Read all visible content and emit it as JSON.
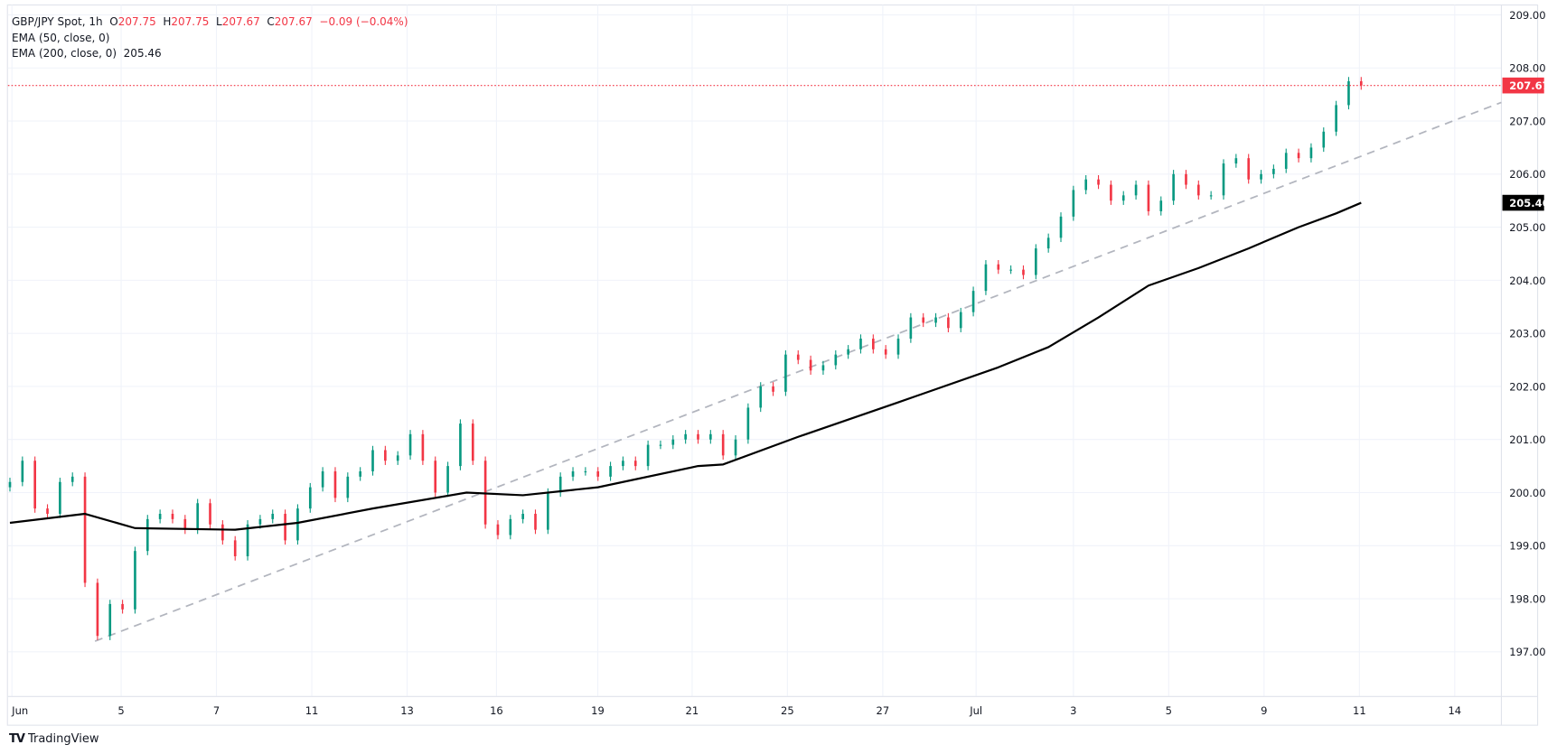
{
  "legend": {
    "symbol": "GBP/JPY Spot, 1h",
    "o_label": "O",
    "open": "207.75",
    "h_label": "H",
    "high": "207.75",
    "l_label": "L",
    "low": "207.67",
    "c_label": "C",
    "close": "207.67",
    "change": "−0.09 (−0.04%)",
    "ema50": "EMA (50, close, 0)",
    "ema200": "EMA (200, close, 0)",
    "ema200_value": "205.46"
  },
  "branding": {
    "logo_text": "TradingView"
  },
  "colors": {
    "up": "#089981",
    "down": "#f23645",
    "ema": "#000000",
    "trendline": "#b2b5be",
    "price_label": "#f23645",
    "grid": "#f0f3fa"
  },
  "chart_data": {
    "type": "candlestick",
    "title": "GBP/JPY Spot, 1h",
    "ylim": [
      196.2,
      209.25
    ],
    "grid": true,
    "price_ticks": [
      "209.00",
      "208.00",
      "207.00",
      "206.00",
      "205.00",
      "204.00",
      "203.00",
      "202.00",
      "201.00",
      "200.00",
      "199.00",
      "198.00",
      "197.00"
    ],
    "time_ticks": [
      "Jun",
      "5",
      "7",
      "11",
      "13",
      "16",
      "19",
      "21",
      "25",
      "27",
      "Jul",
      "3",
      "5",
      "9",
      "11",
      "14"
    ],
    "closes": [
      200.2,
      200.6,
      199.7,
      199.6,
      200.2,
      200.3,
      198.3,
      197.3,
      197.9,
      197.8,
      198.9,
      199.5,
      199.6,
      199.5,
      199.3,
      199.8,
      199.4,
      199.1,
      198.8,
      199.4,
      199.5,
      199.6,
      199.1,
      199.7,
      200.1,
      200.4,
      199.9,
      200.3,
      200.4,
      200.8,
      200.6,
      200.7,
      201.1,
      200.6,
      200.0,
      200.5,
      201.3,
      200.6,
      199.4,
      199.2,
      199.5,
      199.6,
      199.3,
      200.0,
      200.3,
      200.4,
      200.4,
      200.3,
      200.5,
      200.6,
      200.5,
      200.9,
      200.9,
      201.0,
      201.1,
      201.0,
      201.1,
      200.7,
      201.0,
      201.6,
      202.0,
      201.9,
      202.6,
      202.5,
      202.3,
      202.4,
      202.6,
      202.7,
      202.9,
      202.7,
      202.6,
      202.9,
      203.3,
      203.2,
      203.3,
      203.1,
      203.4,
      203.8,
      204.3,
      204.2,
      204.2,
      204.1,
      204.6,
      204.8,
      205.2,
      205.7,
      205.9,
      205.8,
      205.5,
      205.6,
      205.8,
      205.3,
      205.5,
      206.0,
      205.8,
      205.6,
      205.6,
      206.2,
      206.3,
      205.9,
      206.0,
      206.1,
      206.4,
      206.3,
      206.5,
      206.8,
      207.3,
      207.75,
      207.67
    ],
    "ema200": [
      [
        0,
        199.43
      ],
      [
        6,
        199.6
      ],
      [
        10,
        199.33
      ],
      [
        18,
        199.3
      ],
      [
        23,
        199.43
      ],
      [
        29,
        199.7
      ],
      [
        36.5,
        200.0
      ],
      [
        41,
        199.95
      ],
      [
        47,
        200.1
      ],
      [
        55,
        200.5
      ],
      [
        57,
        200.53
      ],
      [
        63,
        201.05
      ],
      [
        71,
        201.7
      ],
      [
        79,
        202.36
      ],
      [
        83,
        202.74
      ],
      [
        87,
        203.3
      ],
      [
        91,
        203.9
      ],
      [
        95,
        204.23
      ],
      [
        99,
        204.6
      ],
      [
        103,
        205.0
      ],
      [
        106,
        205.26
      ],
      [
        108,
        205.46
      ]
    ],
    "trendline": [
      [
        6.8,
        197.2
      ],
      [
        119.2,
        207.35
      ]
    ],
    "last_price": 207.67,
    "last_price_label": "207.67",
    "ema200_label": "205.46"
  }
}
